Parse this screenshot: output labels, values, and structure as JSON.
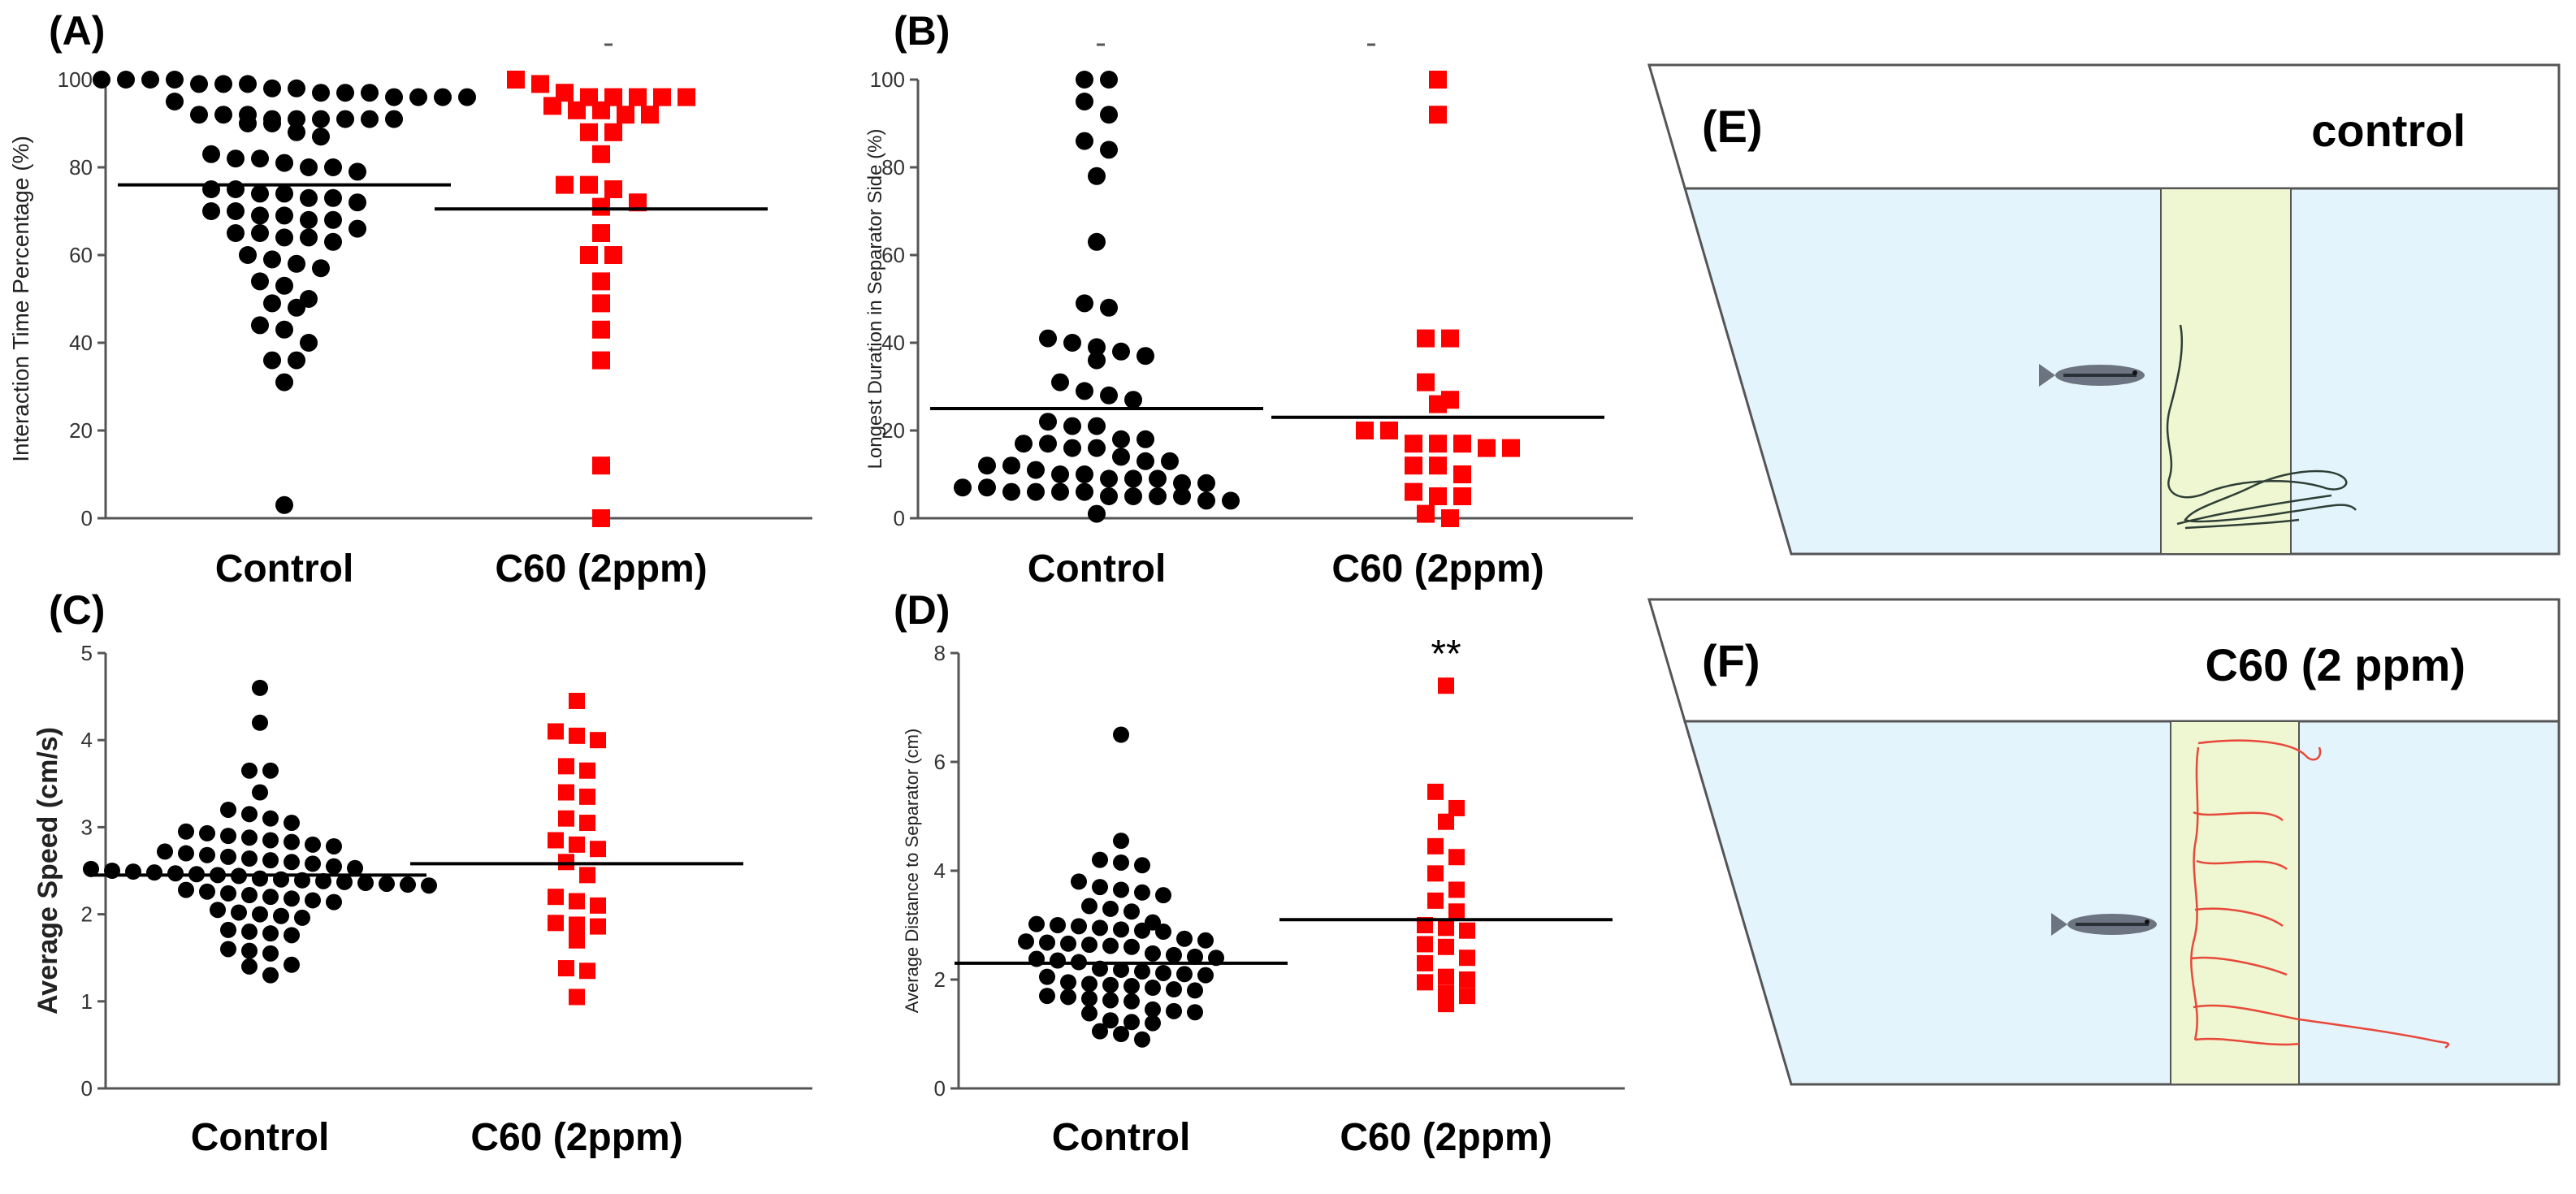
{
  "colors": {
    "control": "#000000",
    "c60": "#ff0000",
    "tank_water": "#e4f4fc",
    "tank_zone": "#eef6d2",
    "tank_border": "#555555",
    "track_control": "#2f3f36",
    "track_c60": "#e8483a"
  },
  "chart_data": [
    {
      "id": "A",
      "panel_label": "(A)",
      "type": "scatter",
      "ylabel": "Interaction Time Percentage (%)",
      "ylim": [
        0,
        100
      ],
      "yticks": [
        "0",
        "20",
        "40",
        "60",
        "80",
        "100"
      ],
      "categories": [
        "Control",
        "C60 (2ppm)"
      ],
      "annotation": "",
      "series": [
        {
          "name": "Control",
          "marker": "circle",
          "mean": 76,
          "values": [
            100,
            100,
            99,
            98,
            97,
            97,
            96,
            96,
            95,
            96,
            96,
            97,
            98,
            99,
            99,
            100,
            100,
            92,
            91,
            91,
            91,
            92,
            92,
            91,
            91,
            90,
            90,
            91,
            88,
            87,
            82,
            83,
            82,
            80,
            79,
            80,
            81,
            75,
            74,
            73,
            72,
            73,
            74,
            75,
            70,
            69,
            68,
            68,
            69,
            70,
            66,
            65,
            65,
            64,
            63,
            64,
            60,
            59,
            58,
            57,
            54,
            53,
            50,
            49,
            48,
            44,
            43,
            40,
            36,
            36,
            31,
            3
          ]
        },
        {
          "name": "C60 (2ppm)",
          "marker": "square",
          "mean": 70.5,
          "values": [
            100,
            99,
            97,
            96,
            96,
            96,
            96,
            96,
            94,
            93,
            93,
            92,
            92,
            88,
            88,
            83,
            76,
            76,
            75,
            72,
            71,
            65,
            60,
            60,
            54,
            49,
            43,
            36,
            12,
            0
          ]
        }
      ]
    },
    {
      "id": "B",
      "panel_label": "(B)",
      "type": "scatter",
      "ylabel": "Longest  Duration in Separator Side (%)",
      "ylim": [
        0,
        100
      ],
      "yticks": [
        "0",
        "20",
        "40",
        "60",
        "80",
        "100"
      ],
      "categories": [
        "Control",
        "C60 (2ppm)"
      ],
      "annotation": "",
      "series": [
        {
          "name": "Control",
          "marker": "circle",
          "mean": 25,
          "values": [
            100,
            100,
            95,
            92,
            86,
            84,
            78,
            63,
            49,
            48,
            41,
            40,
            39,
            38,
            37,
            36,
            31,
            29,
            28,
            27,
            22,
            21,
            21,
            18,
            18,
            17,
            17,
            16,
            16,
            14,
            13,
            13,
            12,
            12,
            11,
            10,
            10,
            9,
            9,
            9,
            8,
            8,
            7,
            7,
            6,
            6,
            6,
            6,
            5,
            5,
            5,
            5,
            4,
            4,
            1
          ]
        },
        {
          "name": "C60 (2ppm)",
          "marker": "square",
          "mean": 23,
          "values": [
            100,
            92,
            41,
            41,
            31,
            27,
            26,
            20,
            20,
            17,
            17,
            17,
            16,
            16,
            12,
            12,
            10,
            6,
            5,
            5,
            1,
            0
          ]
        }
      ]
    },
    {
      "id": "C",
      "panel_label": "(C)",
      "type": "scatter",
      "ylabel": "Average Speed (cm/s)",
      "ylim": [
        0,
        5
      ],
      "yticks": [
        "0",
        "1",
        "2",
        "3",
        "4",
        "5"
      ],
      "categories": [
        "Control",
        "C60 (2ppm)"
      ],
      "annotation": "",
      "series": [
        {
          "name": "Control",
          "marker": "circle",
          "mean": 2.45,
          "values": [
            4.6,
            4.2,
            3.65,
            3.65,
            3.4,
            3.2,
            3.15,
            3.1,
            3.05,
            2.95,
            2.93,
            2.9,
            2.88,
            2.85,
            2.83,
            2.8,
            2.78,
            2.72,
            2.7,
            2.68,
            2.66,
            2.64,
            2.62,
            2.6,
            2.58,
            2.55,
            2.53,
            2.52,
            2.5,
            2.49,
            2.48,
            2.47,
            2.46,
            2.45,
            2.44,
            2.41,
            2.4,
            2.39,
            2.38,
            2.37,
            2.36,
            2.35,
            2.34,
            2.33,
            2.28,
            2.26,
            2.24,
            2.22,
            2.2,
            2.18,
            2.16,
            2.14,
            2.05,
            2.02,
            2.0,
            1.98,
            1.96,
            1.82,
            1.8,
            1.78,
            1.76,
            1.6,
            1.58,
            1.55,
            1.42,
            1.4,
            1.3
          ]
        },
        {
          "name": "C60 (2ppm)",
          "marker": "square",
          "mean": 2.58,
          "values": [
            4.45,
            4.1,
            4.05,
            4.0,
            3.7,
            3.65,
            3.4,
            3.35,
            3.1,
            3.05,
            2.85,
            2.8,
            2.75,
            2.6,
            2.45,
            2.2,
            2.15,
            2.1,
            1.9,
            1.88,
            1.86,
            1.7,
            1.38,
            1.35,
            1.05
          ]
        }
      ]
    },
    {
      "id": "D",
      "panel_label": "(D)",
      "type": "scatter",
      "ylabel": "Average Distance to Separator (cm)",
      "ylim": [
        0,
        8
      ],
      "yticks": [
        "0",
        "2",
        "4",
        "6",
        "8"
      ],
      "categories": [
        "Control",
        "C60 (2ppm)"
      ],
      "annotation": "**",
      "series": [
        {
          "name": "Control",
          "marker": "circle",
          "mean": 2.3,
          "values": [
            6.5,
            4.55,
            4.2,
            4.15,
            4.1,
            3.8,
            3.7,
            3.65,
            3.6,
            3.55,
            3.35,
            3.3,
            3.25,
            3.05,
            3.02,
            3.0,
            2.98,
            2.95,
            2.92,
            2.9,
            2.88,
            2.75,
            2.72,
            2.7,
            2.68,
            2.66,
            2.64,
            2.62,
            2.6,
            2.48,
            2.45,
            2.42,
            2.4,
            2.38,
            2.35,
            2.32,
            2.2,
            2.18,
            2.15,
            2.12,
            2.1,
            2.08,
            2.05,
            1.95,
            1.92,
            1.9,
            1.88,
            1.85,
            1.82,
            1.8,
            1.7,
            1.68,
            1.65,
            1.62,
            1.6,
            1.45,
            1.42,
            1.4,
            1.38,
            1.25,
            1.22,
            1.2,
            1.05,
            1.0,
            0.9
          ]
        },
        {
          "name": "C60 (2ppm)",
          "marker": "square",
          "mean": 3.1,
          "values": [
            7.4,
            5.45,
            5.15,
            4.9,
            4.45,
            4.25,
            3.95,
            3.65,
            3.45,
            3.25,
            3.0,
            2.95,
            2.9,
            2.65,
            2.6,
            2.4,
            2.3,
            2.05,
            2.0,
            1.95,
            1.75,
            1.7,
            1.55
          ]
        }
      ]
    }
  ],
  "tanks": [
    {
      "id": "E",
      "panel_label": "(E)",
      "title": "control"
    },
    {
      "id": "F",
      "panel_label": "(F)",
      "title": "C60 (2 ppm)"
    }
  ]
}
